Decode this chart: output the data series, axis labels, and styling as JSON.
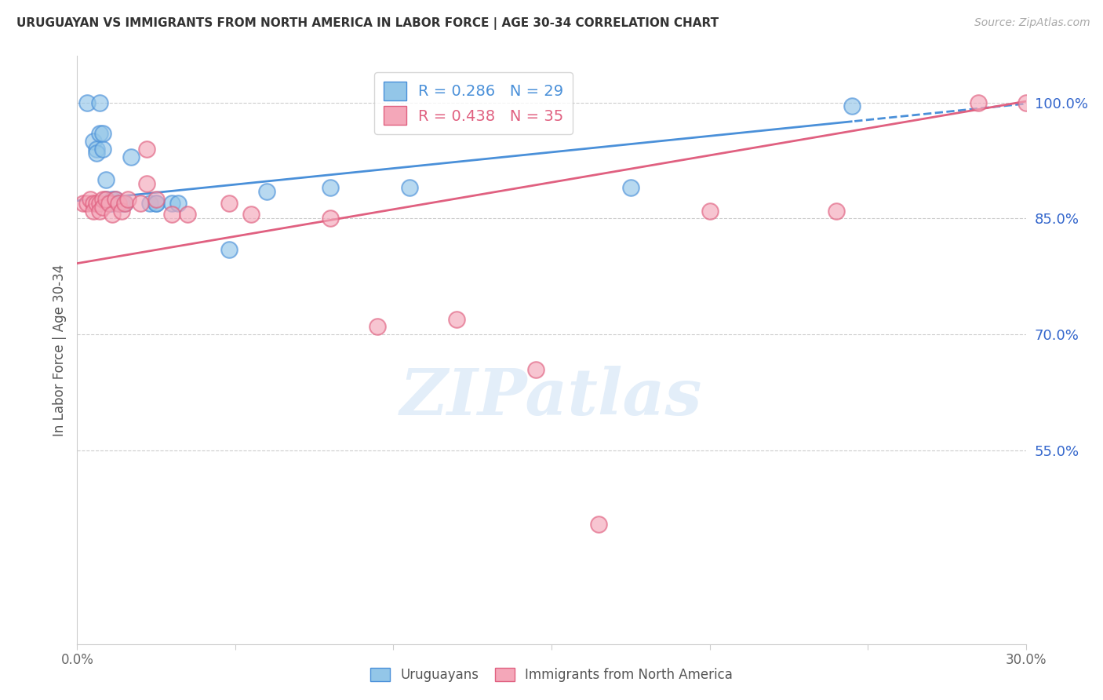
{
  "title": "URUGUAYAN VS IMMIGRANTS FROM NORTH AMERICA IN LABOR FORCE | AGE 30-34 CORRELATION CHART",
  "source": "Source: ZipAtlas.com",
  "ylabel": "In Labor Force | Age 30-34",
  "xlim": [
    0.0,
    0.3
  ],
  "ylim": [
    0.3,
    1.06
  ],
  "xtick_positions": [
    0.0,
    0.05,
    0.1,
    0.15,
    0.2,
    0.25,
    0.3
  ],
  "xticklabels": [
    "0.0%",
    "",
    "",
    "",
    "",
    "",
    "30.0%"
  ],
  "yticks_right": [
    0.55,
    0.7,
    0.85,
    1.0
  ],
  "ytick_right_labels": [
    "55.0%",
    "70.0%",
    "85.0%",
    "100.0%"
  ],
  "blue_face_color": "#93c6e8",
  "blue_edge_color": "#4a90d9",
  "pink_face_color": "#f4a7b9",
  "pink_edge_color": "#e06080",
  "blue_line_color": "#4a90d9",
  "pink_line_color": "#e06080",
  "legend_blue_R": "R = 0.286",
  "legend_blue_N": "N = 29",
  "legend_pink_R": "R = 0.438",
  "legend_pink_N": "N = 35",
  "watermark_text": "ZIPatlas",
  "blue_line_intercept": 0.873,
  "blue_line_slope": 0.418,
  "pink_line_intercept": 0.792,
  "pink_line_slope": 0.698,
  "uru_x": [
    0.002,
    0.003,
    0.004,
    0.005,
    0.006,
    0.006,
    0.007,
    0.007,
    0.008,
    0.009,
    0.01,
    0.011,
    0.011,
    0.012,
    0.013,
    0.015,
    0.016,
    0.018,
    0.022,
    0.025,
    0.03,
    0.035,
    0.05,
    0.06,
    0.08,
    0.105,
    0.17,
    0.24,
    0.245
  ],
  "uru_y": [
    1.0,
    1.0,
    1.0,
    1.0,
    0.96,
    0.95,
    0.94,
    0.94,
    0.935,
    0.9,
    0.875,
    0.87,
    0.9,
    0.86,
    0.86,
    0.87,
    0.87,
    0.875,
    0.86,
    0.94,
    0.9,
    0.87,
    0.87,
    0.81,
    0.89,
    0.89,
    0.89,
    0.995,
    1.0
  ],
  "imm_x": [
    0.002,
    0.003,
    0.004,
    0.005,
    0.005,
    0.006,
    0.007,
    0.008,
    0.008,
    0.009,
    0.01,
    0.011,
    0.012,
    0.013,
    0.014,
    0.015,
    0.016,
    0.018,
    0.02,
    0.022,
    0.025,
    0.027,
    0.035,
    0.045,
    0.06,
    0.08,
    0.095,
    0.11,
    0.145,
    0.175,
    0.195,
    0.22,
    0.25,
    0.28,
    0.295
  ],
  "imm_y": [
    1.0,
    0.87,
    0.87,
    0.87,
    0.86,
    0.87,
    0.86,
    0.875,
    0.865,
    0.87,
    0.87,
    0.86,
    0.875,
    0.86,
    0.87,
    0.875,
    0.86,
    0.87,
    0.87,
    0.895,
    0.87,
    0.87,
    0.855,
    0.87,
    0.855,
    0.855,
    0.87,
    0.86,
    0.86,
    0.71,
    0.65,
    0.86,
    0.86,
    0.455,
    0.88
  ]
}
